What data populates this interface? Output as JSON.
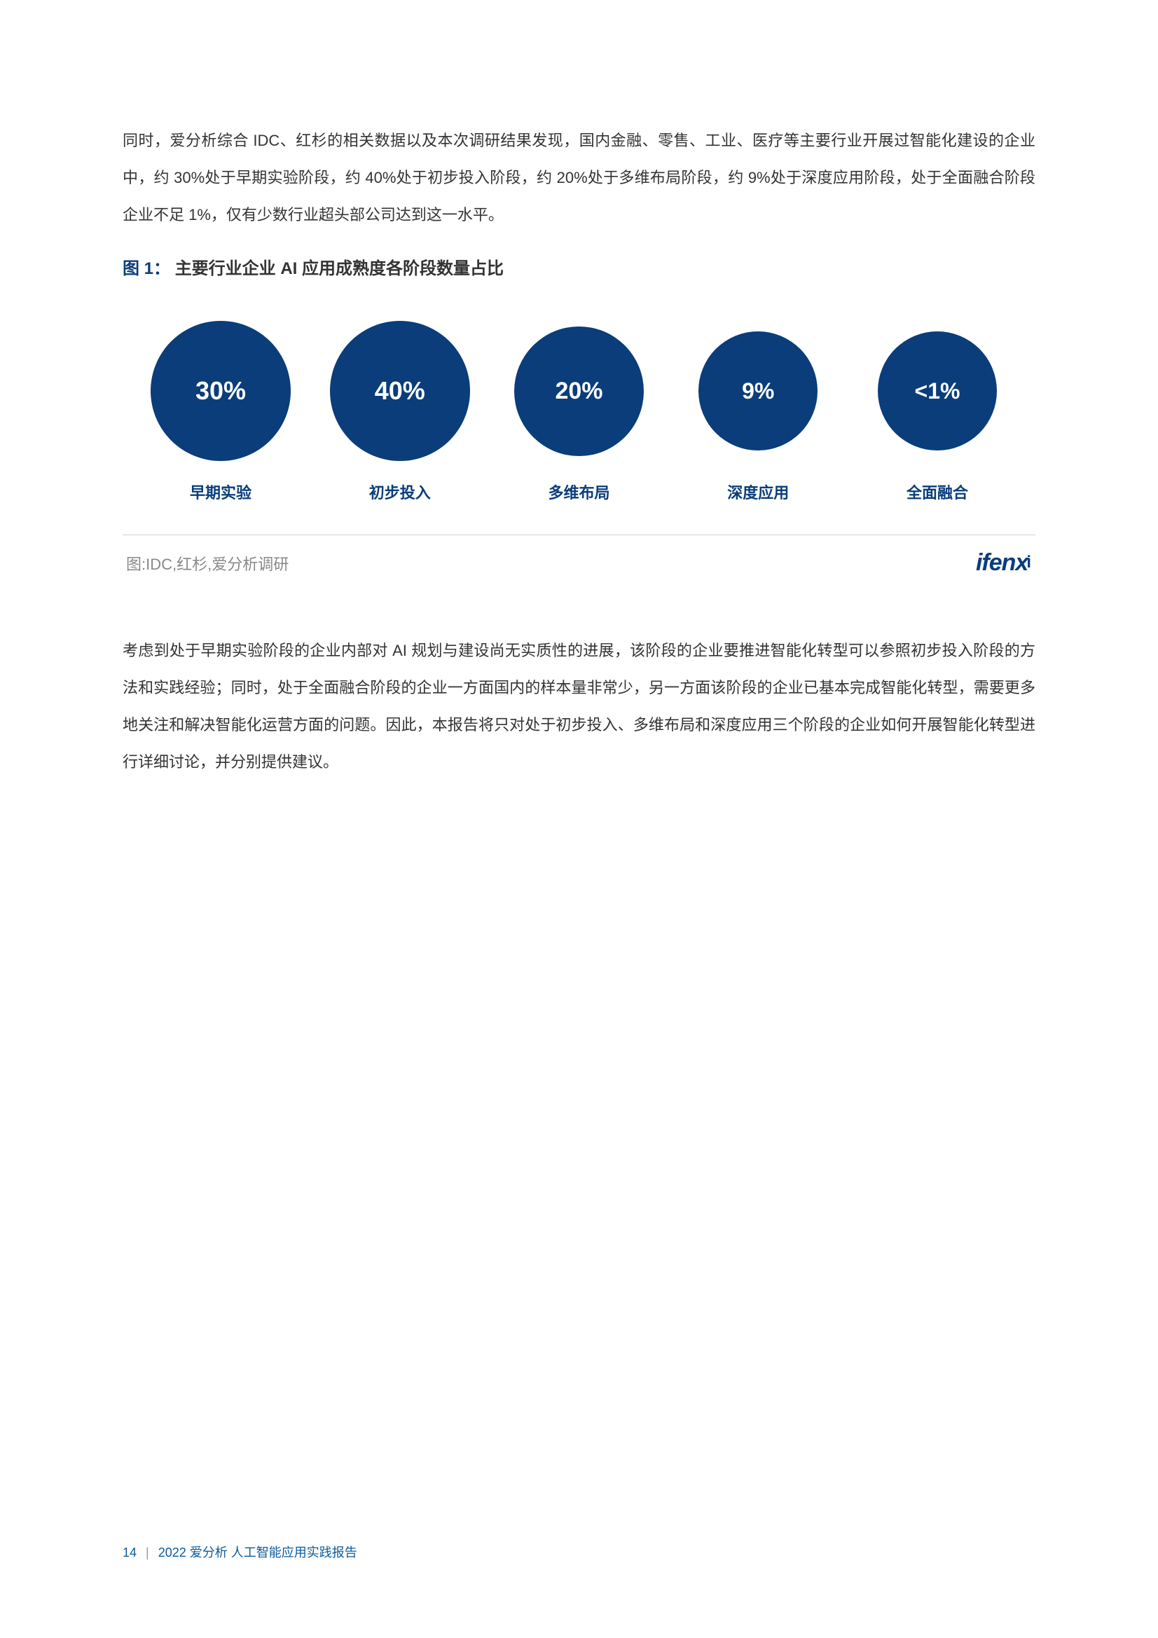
{
  "paragraph1": "同时，爱分析综合 IDC、红杉的相关数据以及本次调研结果发现，国内金融、零售、工业、医疗等主要行业开展过智能化建设的企业中，约 30%处于早期实验阶段，约 40%处于初步投入阶段，约 20%处于多维布局阶段，约 9%处于深度应用阶段，处于全面融合阶段企业不足 1%，仅有少数行业超头部公司达到这一水平。",
  "figure": {
    "prefix": "图 1：",
    "title": "主要行业企业 AI 应用成熟度各阶段数量占比",
    "circles": [
      {
        "value": "30%",
        "label": "早期实验",
        "diameter": 200,
        "fontsize": 36,
        "fill": "#0a3d7a",
        "label_color": "#0a3d7a"
      },
      {
        "value": "40%",
        "label": "初步投入",
        "diameter": 200,
        "fontsize": 36,
        "fill": "#0a3d7a",
        "label_color": "#0a3d7a"
      },
      {
        "value": "20%",
        "label": "多维布局",
        "diameter": 185,
        "fontsize": 34,
        "fill": "#0a3d7a",
        "label_color": "#0a3d7a"
      },
      {
        "value": "9%",
        "label": "深度应用",
        "diameter": 170,
        "fontsize": 32,
        "fill": "#0a3d7a",
        "label_color": "#0a3d7a"
      },
      {
        "value": "<1%",
        "label": "全面融合",
        "diameter": 170,
        "fontsize": 32,
        "fill": "#0a3d7a",
        "label_color": "#0a3d7a"
      }
    ],
    "max_diameter": 200,
    "source": "图:IDC,红杉,爱分析调研",
    "logo_text": "ifenx",
    "logo_accent": "i",
    "divider_color": "#d0d0d0",
    "background": "#ffffff"
  },
  "paragraph2": "考虑到处于早期实验阶段的企业内部对 AI 规划与建设尚无实质性的进展，该阶段的企业要推进智能化转型可以参照初步投入阶段的方法和实践经验；同时，处于全面融合阶段的企业一方面国内的样本量非常少，另一方面该阶段的企业已基本完成智能化转型，需要更多地关注和解决智能化运营方面的问题。因此，本报告将只对处于初步投入、多维布局和深度应用三个阶段的企业如何开展智能化转型进行详细讨论，并分别提供建议。",
  "footer": {
    "page": "14",
    "separator": "|",
    "title": "2022 爱分析  人工智能应用实践报告"
  }
}
